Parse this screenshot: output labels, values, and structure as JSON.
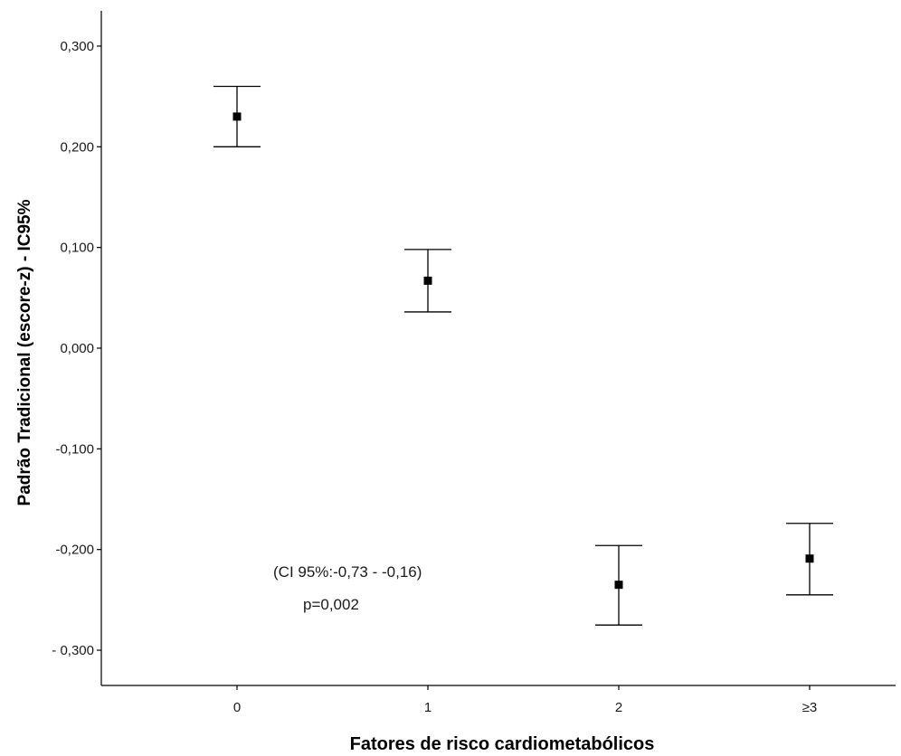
{
  "chart_data": {
    "type": "scatter",
    "title": "",
    "xlabel": "Fatores de risco cardiometabólicos",
    "ylabel": "Padrão Tradicional (escore-z) - IC95%",
    "categories": [
      "0",
      "1",
      "2",
      "≥3"
    ],
    "y_ticks": [
      "0,300",
      "0,200",
      "0,100",
      "0,000",
      "-0,100",
      "-0,200",
      "- 0,300"
    ],
    "y_tick_values": [
      0.3,
      0.2,
      0.1,
      0.0,
      -0.1,
      -0.2,
      -0.3
    ],
    "ylim": [
      -0.335,
      0.335
    ],
    "grid": false,
    "series": [
      {
        "values": [
          0.23,
          0.067,
          -0.235,
          -0.209
        ],
        "ci_upper": [
          0.26,
          0.098,
          -0.196,
          -0.174
        ],
        "ci_lower": [
          0.2,
          0.036,
          -0.275,
          -0.245
        ]
      }
    ],
    "annotations": [
      "(CI 95%:-0,73 - -0,16)",
      "p=0,002"
    ]
  }
}
